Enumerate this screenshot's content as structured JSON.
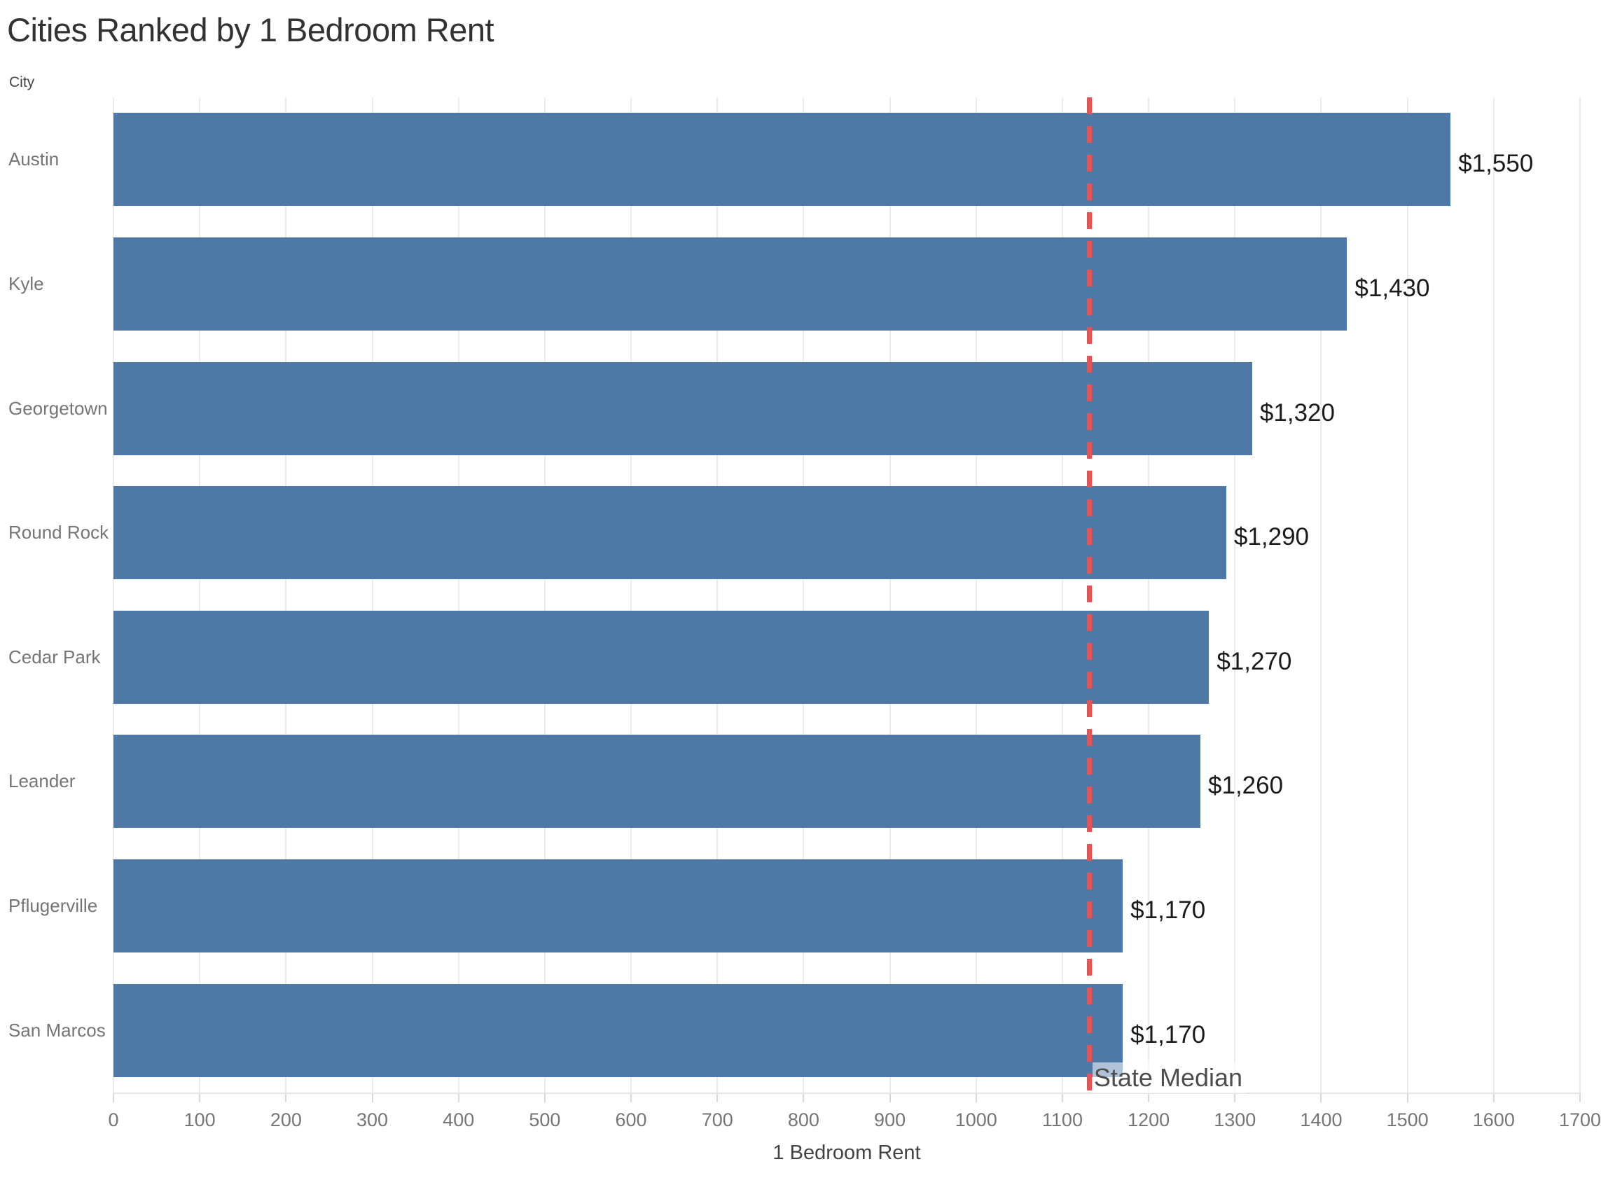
{
  "title": "Cities Ranked by 1 Bedroom Rent",
  "chart_data": {
    "type": "bar",
    "orientation": "horizontal",
    "title": "Cities Ranked by 1 Bedroom Rent",
    "categories": [
      "Austin",
      "Kyle",
      "Georgetown",
      "Round Rock",
      "Cedar Park",
      "Leander",
      "Pflugerville",
      "San Marcos"
    ],
    "values": [
      1550,
      1430,
      1320,
      1290,
      1270,
      1260,
      1170,
      1170
    ],
    "value_labels": [
      "$1,550",
      "$1,430",
      "$1,320",
      "$1,290",
      "$1,270",
      "$1,260",
      "$1,170",
      "$1,170"
    ],
    "xlabel": "1 Bedroom Rent",
    "ylabel": "City",
    "xlim": [
      0,
      1700
    ],
    "x_tick_step": 100,
    "x_tick_labels": [
      "0",
      "100",
      "200",
      "300",
      "400",
      "500",
      "600",
      "700",
      "800",
      "900",
      "1000",
      "1100",
      "1200",
      "1300",
      "1400",
      "1500",
      "1600",
      "1700"
    ],
    "grid": "vertical-only",
    "legend": "none",
    "reference_line": {
      "label": "State Median",
      "value": 1130,
      "style": "dashed"
    },
    "colors": {
      "bar": "#4E79A7",
      "reference_line": "#E15759",
      "gridline": "#ECECEC",
      "title": "#323232",
      "category_label": "#757575",
      "value_label": "#1B1B1B",
      "tick_label": "#767676",
      "axis_title": "#424242",
      "field_label": "#454545",
      "reference_label": "#4D4D4D"
    }
  }
}
